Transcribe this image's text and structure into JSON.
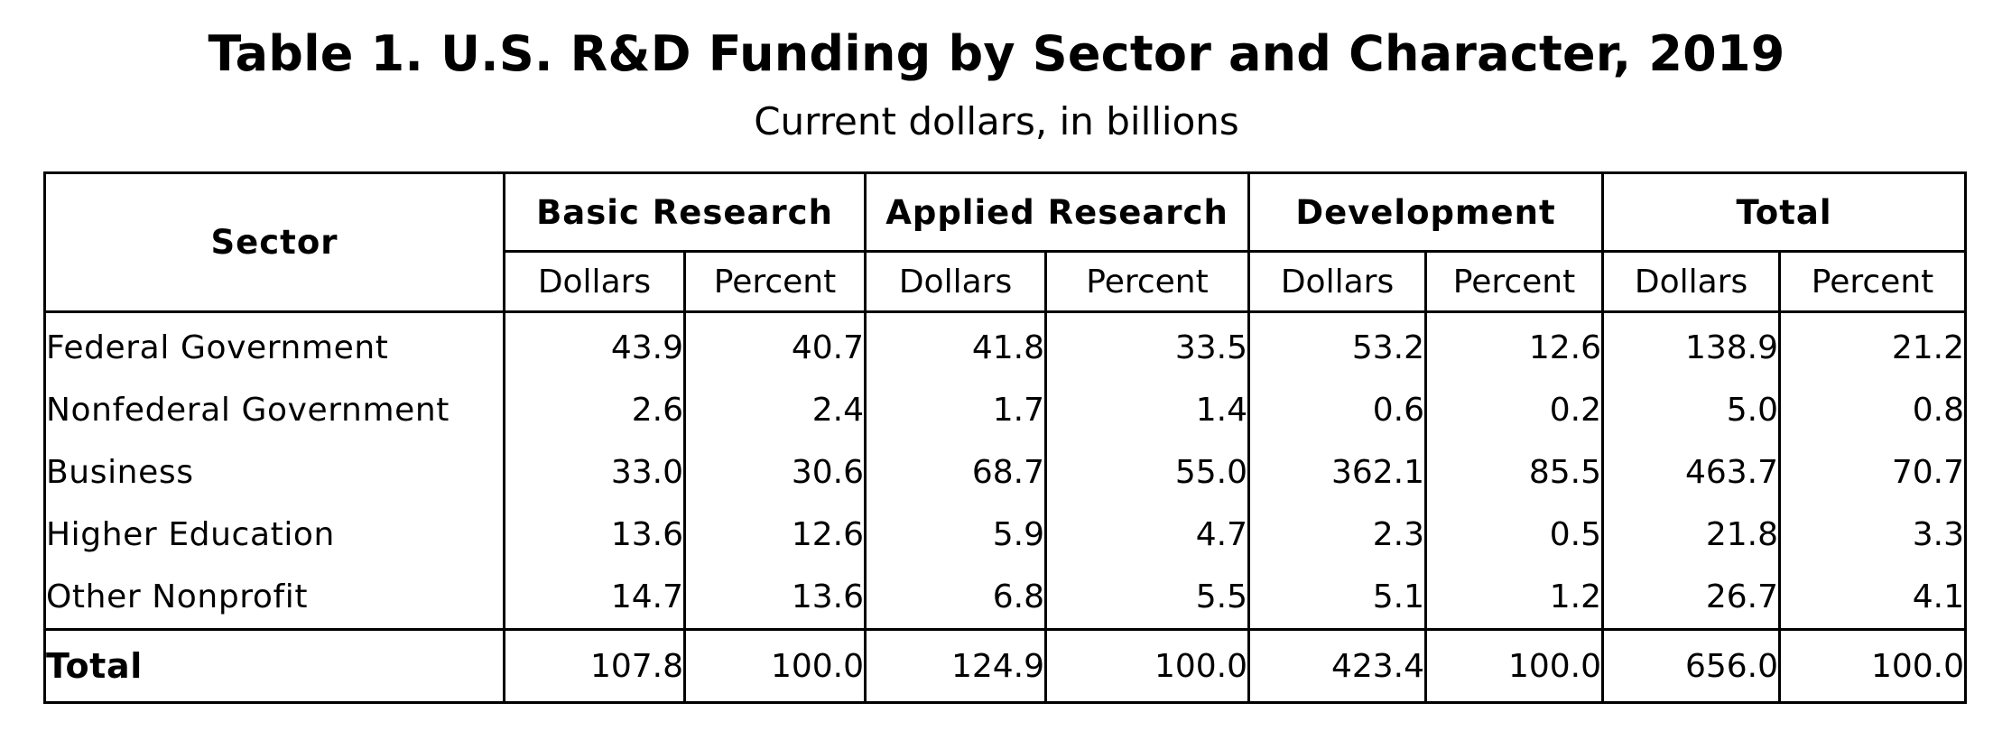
{
  "title": "Table 1. U.S. R&D Funding by Sector and Character, 2019",
  "subtitle": "Current dollars, in billions",
  "table": {
    "sector_header": "Sector",
    "groups": [
      "Basic Research",
      "Applied Research",
      "Development",
      "Total"
    ],
    "subheaders": [
      "Dollars",
      "Percent",
      "Dollars",
      "Percent",
      "Dollars",
      "Percent",
      "Dollars",
      "Percent"
    ],
    "rows": [
      {
        "sector": "Federal Government",
        "values": [
          "43.9",
          "40.7",
          "41.8",
          "33.5",
          "53.2",
          "12.6",
          "138.9",
          "21.2"
        ]
      },
      {
        "sector": "Nonfederal Government",
        "values": [
          "2.6",
          "2.4",
          "1.7",
          "1.4",
          "0.6",
          "0.2",
          "5.0",
          "0.8"
        ]
      },
      {
        "sector": "Business",
        "values": [
          "33.0",
          "30.6",
          "68.7",
          "55.0",
          "362.1",
          "85.5",
          "463.7",
          "70.7"
        ]
      },
      {
        "sector": "Higher Education",
        "values": [
          "13.6",
          "12.6",
          "5.9",
          "4.7",
          "2.3",
          "0.5",
          "21.8",
          "3.3"
        ]
      },
      {
        "sector": "Other Nonprofit",
        "values": [
          "14.7",
          "13.6",
          "6.8",
          "5.5",
          "5.1",
          "1.2",
          "26.7",
          "4.1"
        ]
      }
    ],
    "total": {
      "sector": "Total",
      "values": [
        "107.8",
        "100.0",
        "124.9",
        "100.0",
        "423.4",
        "100.0",
        "656.0",
        "100.0"
      ]
    }
  }
}
